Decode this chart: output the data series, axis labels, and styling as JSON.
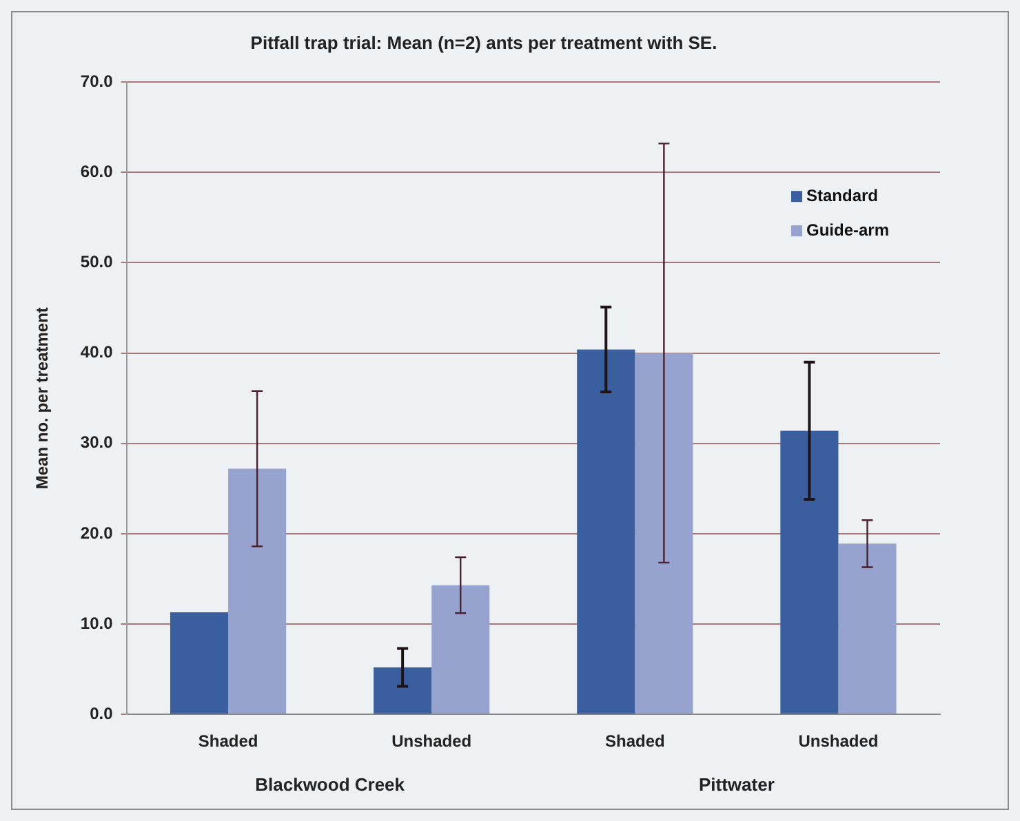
{
  "chart_data": {
    "type": "bar",
    "title": "Pitfall trap trial: Mean (n=2) ants per treatment with SE.",
    "ylabel": "Mean no. per treatment",
    "categories": [
      "Shaded",
      "Unshaded",
      "Shaded",
      "Unshaded"
    ],
    "series": [
      {
        "name": "Standard",
        "color": "#3b5e9e",
        "values": [
          11.3,
          5.2,
          40.4,
          31.4
        ],
        "errors": [
          null,
          2.1,
          4.7,
          7.6
        ]
      },
      {
        "name": "Guide-arm",
        "color": "#97a3cf",
        "values": [
          27.2,
          14.3,
          40.0,
          18.9
        ],
        "errors": [
          8.6,
          3.1,
          23.2,
          2.6
        ]
      }
    ],
    "annotations": [
      "Blackwood Creek",
      "Pittwater"
    ],
    "ylim": [
      0,
      70
    ],
    "yticks": [
      {
        "value": 0,
        "label": "0.0"
      },
      {
        "value": 10,
        "label": "10.0"
      },
      {
        "value": 20,
        "label": "20.0"
      },
      {
        "value": 30,
        "label": "30.0"
      },
      {
        "value": 40,
        "label": "40.0"
      },
      {
        "value": 50,
        "label": "50.0"
      },
      {
        "value": 60,
        "label": "60.0"
      },
      {
        "value": 70,
        "label": "70.0"
      }
    ],
    "grid": "y",
    "legend": "top right"
  }
}
